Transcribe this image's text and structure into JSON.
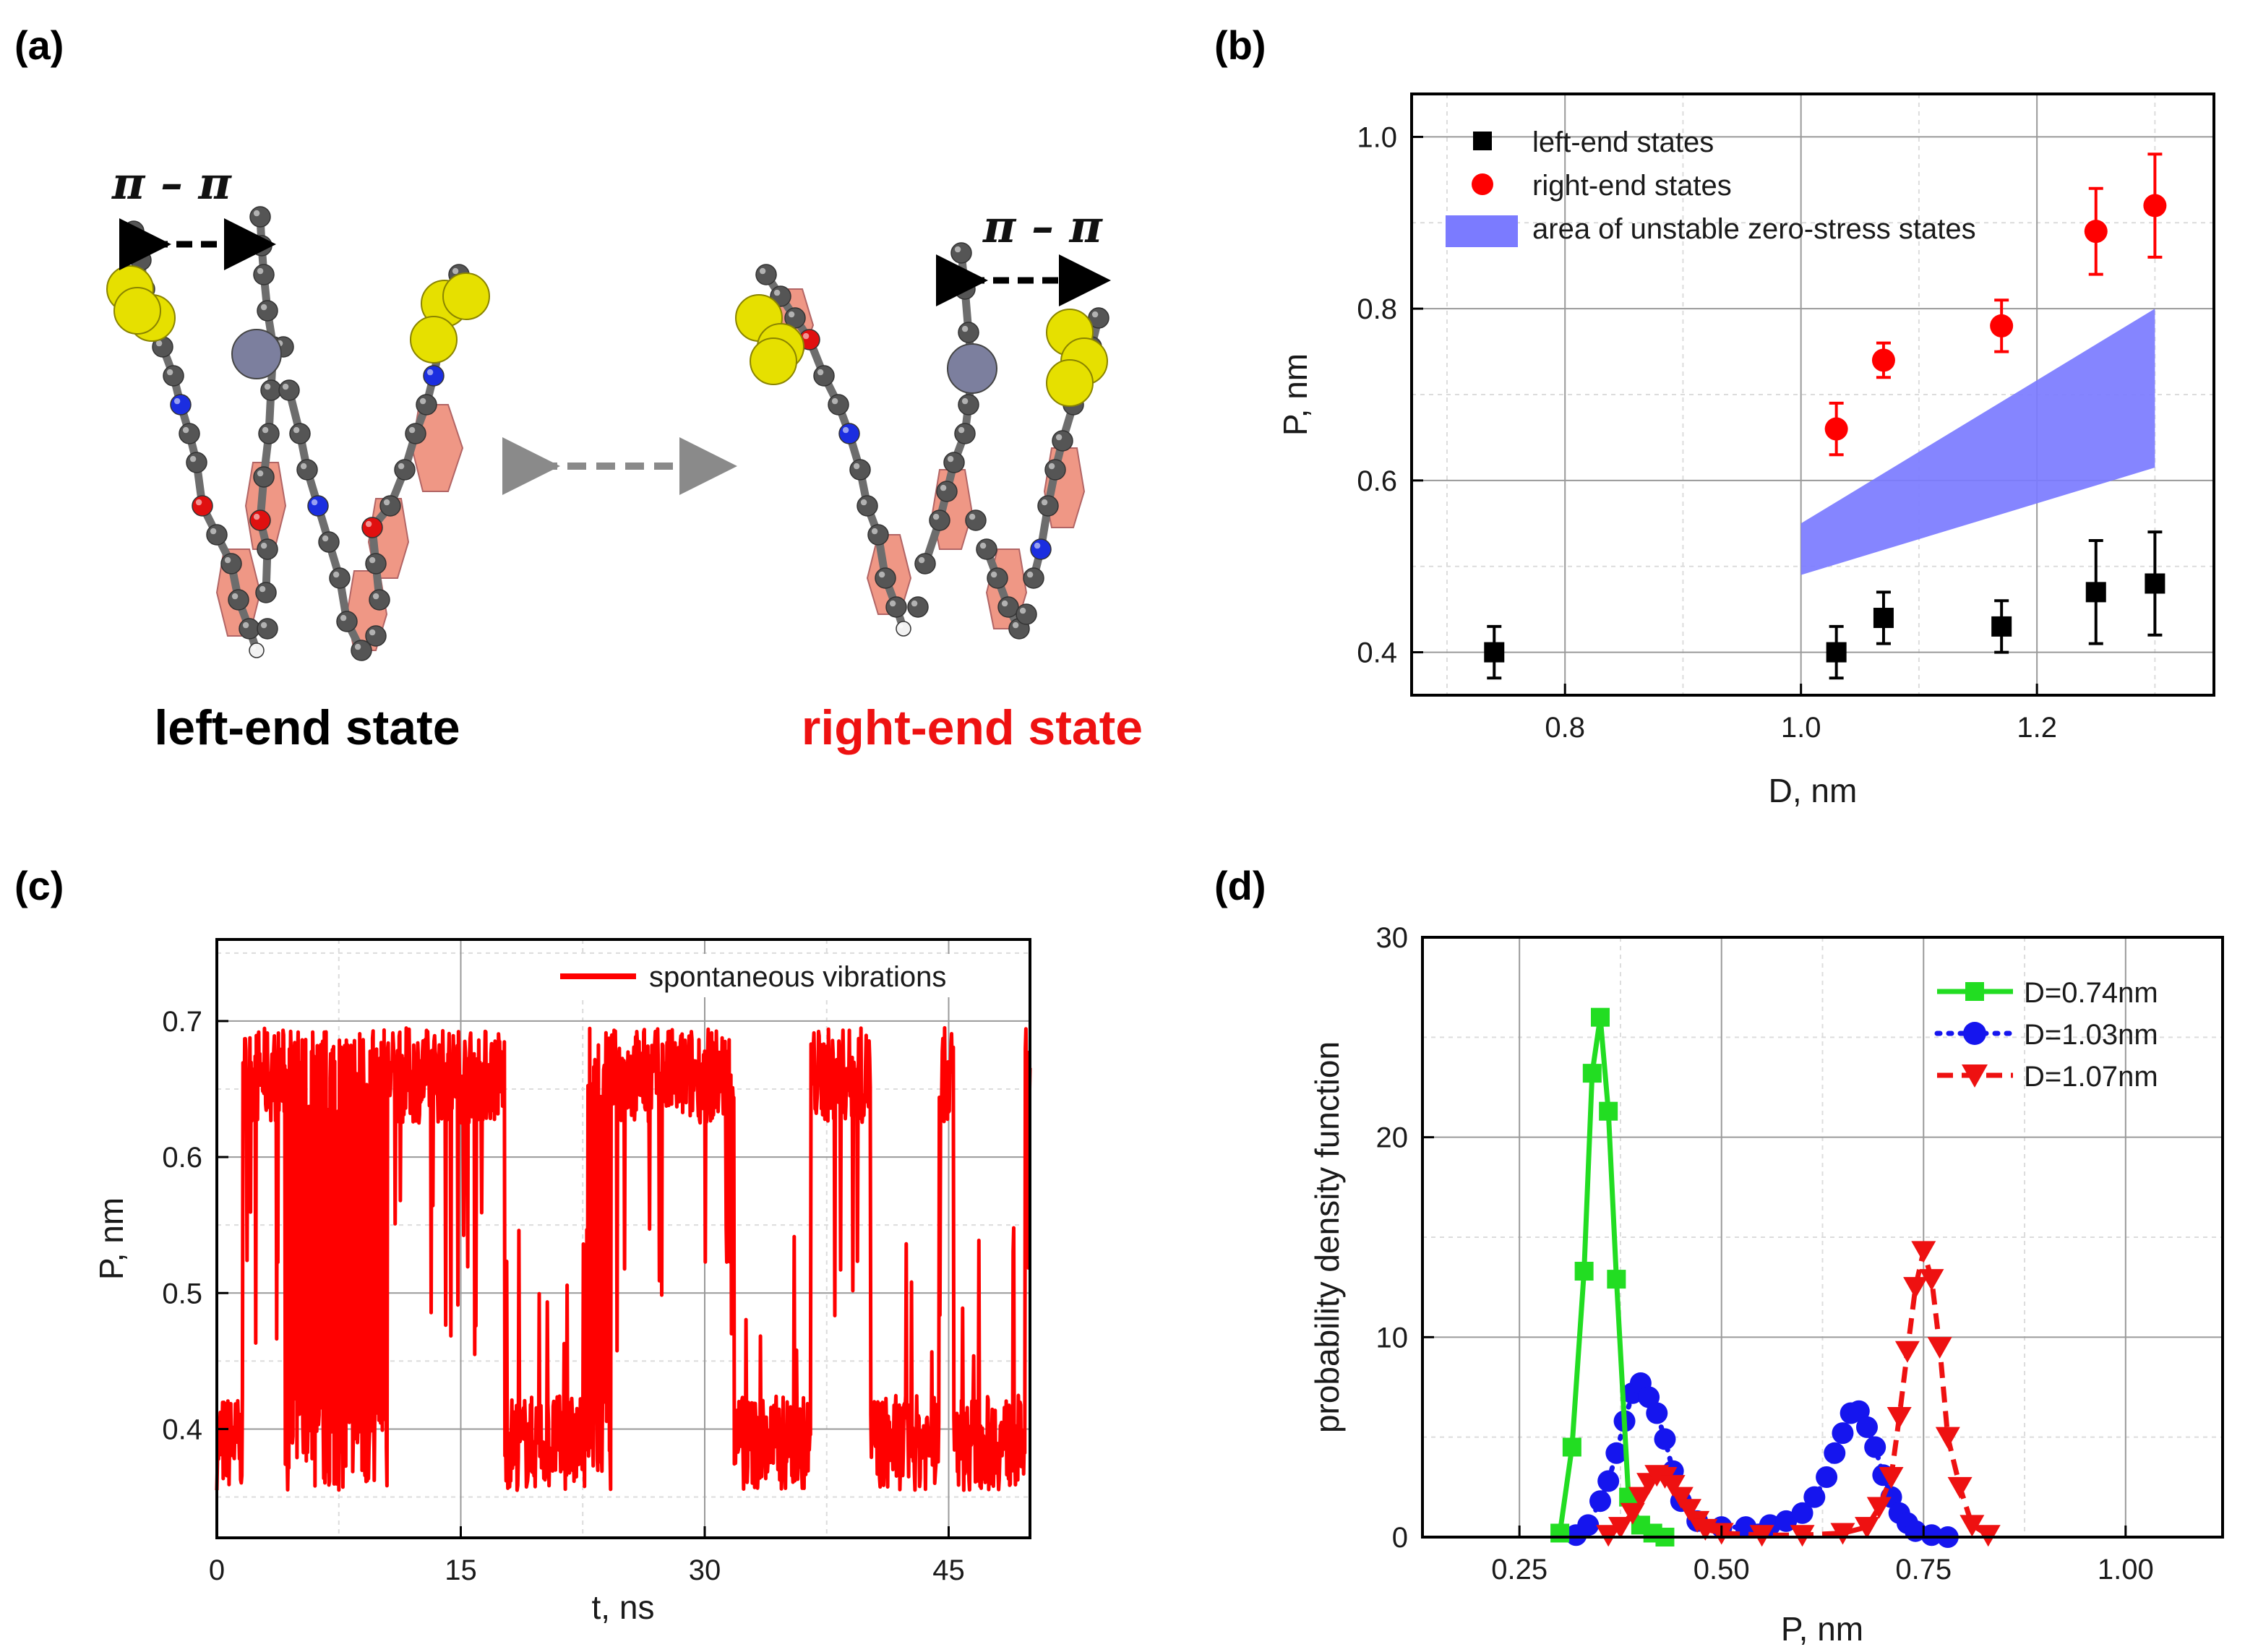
{
  "panel_labels": [
    "(a)",
    "(b)",
    "(c)",
    "(d)"
  ],
  "panel_a": {
    "left_state_label": "left-end state",
    "right_state_label": "right-end state",
    "pi_stack_label": "π – π",
    "colors": {
      "left_label": "#000000",
      "right_label": "#ee1111",
      "carbon": "#555555",
      "sulfur": "#e6e000",
      "nitrogen": "#1b2ee0",
      "oxygen": "#e01010",
      "hydrogen": "#f2f2f2",
      "metal": "#7c7f9e",
      "ring": "#ee8c78"
    }
  },
  "chart_data": [
    {
      "panel": "(b)",
      "type": "scatter",
      "xlabel": "D, nm",
      "ylabel": "P, nm",
      "xlim": [
        0.67,
        1.35
      ],
      "ylim": [
        0.35,
        1.05
      ],
      "xticks": [
        0.8,
        1.0,
        1.2
      ],
      "xtick_labels": [
        "0.8",
        "1.0",
        "1.2"
      ],
      "yticks": [
        0.4,
        0.6,
        0.8,
        1.0
      ],
      "ytick_labels": [
        "0.4",
        "0.6",
        "0.8",
        "1.0"
      ],
      "grid": true,
      "legend_position": "top-left",
      "series": [
        {
          "name": "left-end states",
          "marker": "square",
          "color": "#000000",
          "x": [
            0.74,
            1.03,
            1.07,
            1.17,
            1.25,
            1.3
          ],
          "y": [
            0.4,
            0.4,
            0.44,
            0.43,
            0.47,
            0.48
          ],
          "err": [
            0.03,
            0.03,
            0.03,
            0.03,
            0.06,
            0.06
          ]
        },
        {
          "name": "right-end states",
          "marker": "circle",
          "color": "#ff0000",
          "x": [
            1.03,
            1.07,
            1.17,
            1.25,
            1.3
          ],
          "y": [
            0.66,
            0.74,
            0.78,
            0.89,
            0.92
          ],
          "err": [
            0.03,
            0.02,
            0.03,
            0.05,
            0.06
          ]
        },
        {
          "name": "area of unstable zero-stress states",
          "type": "band",
          "color": "#7b7bff",
          "x": [
            1.0,
            1.3
          ],
          "lower": [
            0.49,
            0.615
          ],
          "upper": [
            0.55,
            0.8
          ]
        }
      ]
    },
    {
      "panel": "(c)",
      "type": "line",
      "xlabel": "t, ns",
      "ylabel": "P, nm",
      "xlim": [
        0,
        50
      ],
      "ylim": [
        0.32,
        0.76
      ],
      "xticks": [
        0,
        15,
        30,
        45
      ],
      "xtick_labels": [
        "0",
        "15",
        "30",
        "45"
      ],
      "yticks": [
        0.4,
        0.5,
        0.6,
        0.7
      ],
      "ytick_labels": [
        "0.4",
        "0.5",
        "0.6",
        "0.7"
      ],
      "grid": true,
      "legend_position": "top-right",
      "series": [
        {
          "name": "spontaneous vibrations",
          "color": "#ff0000",
          "segments": [
            {
              "t0": 0.0,
              "t1": 1.6,
              "state": "low"
            },
            {
              "t0": 1.6,
              "t1": 4.2,
              "state": "high"
            },
            {
              "t0": 4.2,
              "t1": 6.8,
              "state": "mixed"
            },
            {
              "t0": 6.8,
              "t1": 10.5,
              "state": "mixed"
            },
            {
              "t0": 10.5,
              "t1": 17.7,
              "state": "high"
            },
            {
              "t0": 17.7,
              "t1": 22.8,
              "state": "low"
            },
            {
              "t0": 22.8,
              "t1": 24.3,
              "state": "mixed"
            },
            {
              "t0": 24.3,
              "t1": 31.8,
              "state": "high"
            },
            {
              "t0": 31.8,
              "t1": 36.5,
              "state": "low"
            },
            {
              "t0": 36.5,
              "t1": 40.2,
              "state": "high"
            },
            {
              "t0": 40.2,
              "t1": 44.4,
              "state": "low"
            },
            {
              "t0": 44.4,
              "t1": 45.3,
              "state": "high"
            },
            {
              "t0": 45.3,
              "t1": 49.7,
              "state": "low"
            },
            {
              "t0": 49.7,
              "t1": 50.0,
              "state": "high"
            }
          ],
          "levels": {
            "low": 0.39,
            "high": 0.66
          }
        }
      ]
    },
    {
      "panel": "(d)",
      "type": "line",
      "xlabel": "P, nm",
      "ylabel": "probability density function",
      "xlim": [
        0.13,
        1.12
      ],
      "ylim": [
        0,
        30
      ],
      "xticks": [
        0.25,
        0.5,
        0.75,
        1.0
      ],
      "xtick_labels": [
        "0.25",
        "0.50",
        "0.75",
        "1.00"
      ],
      "yticks": [
        0,
        10,
        20,
        30
      ],
      "ytick_labels": [
        "0",
        "10",
        "20",
        "30"
      ],
      "grid": true,
      "legend_position": "top-right",
      "series": [
        {
          "name": "D=0.74nm",
          "color": "#22dd22",
          "marker": "square",
          "line": "solid",
          "x": [
            0.3,
            0.315,
            0.33,
            0.34,
            0.35,
            0.36,
            0.37,
            0.385,
            0.4,
            0.415,
            0.43
          ],
          "y": [
            0.2,
            4.5,
            13.3,
            23.2,
            26.0,
            21.3,
            12.9,
            2.0,
            0.6,
            0.2,
            0.0
          ]
        },
        {
          "name": "D=1.03nm",
          "color": "#1515ee",
          "marker": "circle",
          "line": "dotted",
          "x": [
            0.32,
            0.335,
            0.35,
            0.36,
            0.37,
            0.38,
            0.39,
            0.4,
            0.41,
            0.42,
            0.43,
            0.44,
            0.45,
            0.47,
            0.5,
            0.53,
            0.56,
            0.58,
            0.6,
            0.615,
            0.63,
            0.64,
            0.65,
            0.66,
            0.67,
            0.68,
            0.69,
            0.7,
            0.71,
            0.72,
            0.73,
            0.74,
            0.76,
            0.78
          ],
          "y": [
            0.1,
            0.6,
            1.8,
            2.8,
            4.2,
            5.8,
            7.2,
            7.7,
            7.0,
            6.2,
            4.9,
            3.3,
            1.8,
            0.8,
            0.5,
            0.5,
            0.6,
            0.8,
            1.2,
            2.0,
            3.0,
            4.2,
            5.2,
            6.2,
            6.3,
            5.5,
            4.5,
            3.1,
            2.0,
            1.2,
            0.7,
            0.3,
            0.1,
            0.0
          ]
        },
        {
          "name": "D=1.07nm",
          "color": "#ee1111",
          "marker": "triangle-down",
          "line": "dashed",
          "x": [
            0.36,
            0.375,
            0.39,
            0.4,
            0.41,
            0.42,
            0.43,
            0.44,
            0.45,
            0.46,
            0.47,
            0.48,
            0.5,
            0.55,
            0.6,
            0.65,
            0.68,
            0.695,
            0.71,
            0.72,
            0.73,
            0.74,
            0.75,
            0.76,
            0.77,
            0.78,
            0.795,
            0.81,
            0.83
          ],
          "y": [
            0.1,
            0.5,
            1.2,
            2.0,
            2.7,
            3.1,
            3.0,
            2.6,
            2.0,
            1.4,
            0.8,
            0.4,
            0.2,
            0.1,
            0.1,
            0.2,
            0.5,
            1.5,
            3.0,
            6.0,
            9.3,
            12.5,
            14.3,
            12.9,
            9.5,
            5.0,
            2.5,
            0.6,
            0.1
          ]
        }
      ]
    }
  ]
}
